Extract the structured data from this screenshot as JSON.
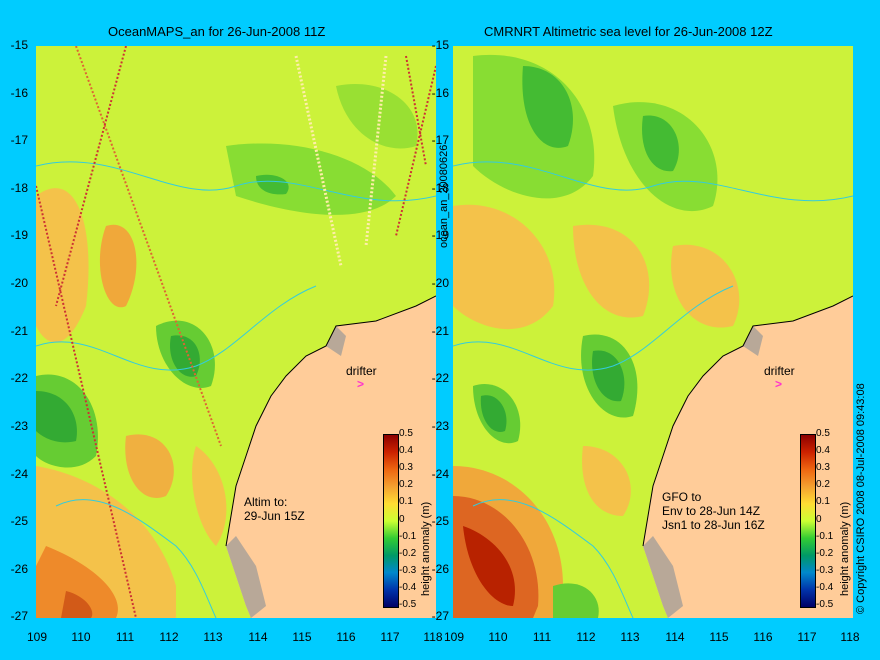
{
  "panels": [
    {
      "title": "OceanMAPS_an for 26-Jun-2008 11Z",
      "note": "Altim to:\n29-Jun 15Z",
      "drifter": "drifter",
      "colorbar_label": "height anomaly (m)"
    },
    {
      "title": "CMRNRT Altimetric sea level  for 26-Jun-2008 12Z",
      "note": "GFO to\nEnv to 28-Jun 14Z\nJsn1 to 28-Jun 16Z",
      "drifter": "drifter",
      "colorbar_label": "height anomaly (m)"
    }
  ],
  "y_ticks": [
    "-15",
    "-16",
    "-17",
    "-18",
    "-19",
    "-20",
    "-21",
    "-22",
    "-23",
    "-24",
    "-25",
    "-26",
    "-27"
  ],
  "x_ticks": [
    "109",
    "110",
    "111",
    "112",
    "113",
    "114",
    "115",
    "116",
    "117",
    "118"
  ],
  "colorbar_ticks": [
    "0.5",
    "0.4",
    "0.3",
    "0.2",
    "0.1",
    "0",
    "-0.1",
    "-0.2",
    "-0.3",
    "-0.4",
    "-0.5"
  ],
  "side_left": "ocean_an_20080626",
  "side_right": "© Copyright CSIRO 2008   08-Jul-2008 09:43:08",
  "colors": {
    "background": "#00ccff",
    "land": "#ffcc99",
    "shelf": "#b8a898",
    "contour": "#33ccdd",
    "drifter": "#ff33cc"
  }
}
